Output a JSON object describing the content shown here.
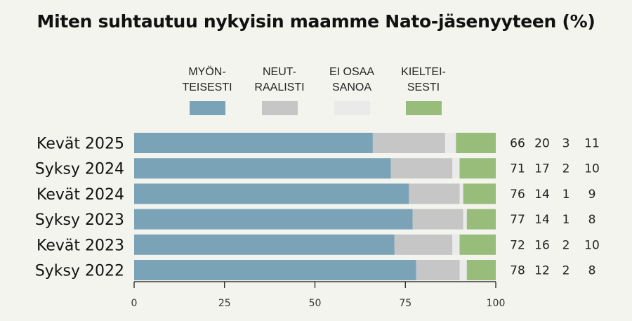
{
  "chart_data": {
    "type": "bar",
    "orientation": "horizontal",
    "stacked": true,
    "title": "Miten suhtautuu nykyisin maamme Nato-jäsenyyteen (%)",
    "xlabel": "",
    "ylabel": "",
    "xlim": [
      0,
      100
    ],
    "xticks": [
      0,
      25,
      50,
      75,
      100
    ],
    "grid": false,
    "legend_position": "top",
    "categories": [
      "Kevät 2025",
      "Syksy 2024",
      "Kevät 2024",
      "Syksy 2023",
      "Kevät 2023",
      "Syksy 2022"
    ],
    "series": [
      {
        "name": "MYÖN-\nTEISESTI",
        "color": "#7aa3b8",
        "values": [
          66,
          71,
          76,
          77,
          72,
          78
        ]
      },
      {
        "name": "NEUT-\nRAALISTI",
        "color": "#c6c6c6",
        "values": [
          20,
          17,
          14,
          14,
          16,
          12
        ]
      },
      {
        "name": "EI OSAA\nSANOA",
        "color": "#eaeaea",
        "values": [
          3,
          2,
          1,
          1,
          2,
          2
        ]
      },
      {
        "name": "KIELTEI-\nSESTI",
        "color": "#98bd7a",
        "values": [
          11,
          10,
          9,
          8,
          10,
          8
        ]
      }
    ]
  }
}
